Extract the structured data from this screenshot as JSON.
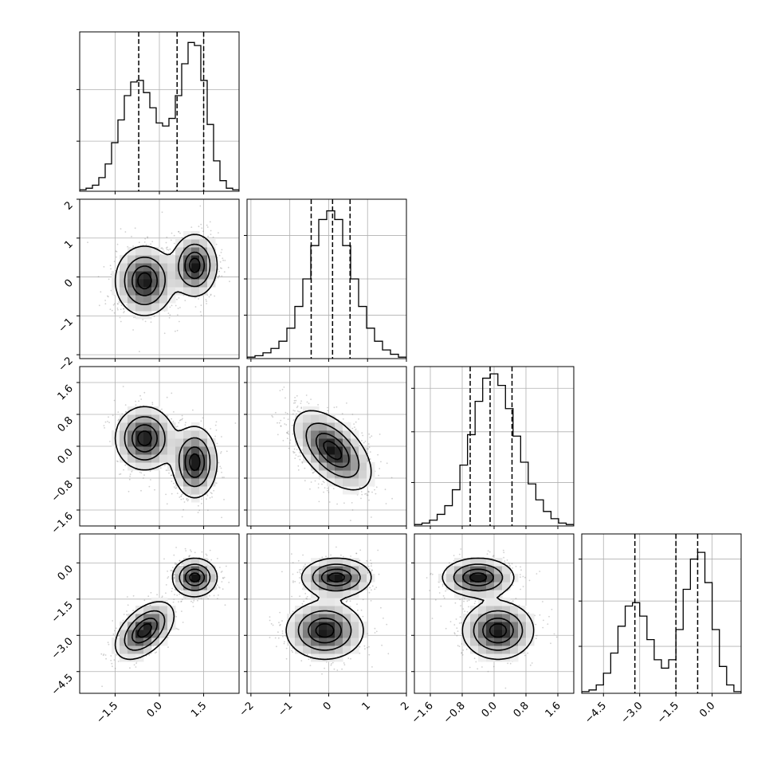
{
  "chart_data": {
    "type": "corner",
    "title": "",
    "grid": true,
    "colors": {
      "line": "#000000",
      "grid": "#b0b0b0",
      "scatter": "#777777"
    },
    "params": [
      {
        "index": 0,
        "range": [
          -2.7,
          2.7
        ],
        "ticks": [
          -1.5,
          0.0,
          1.5
        ],
        "tick_labels": [
          "−1.5",
          "0.0",
          "1.5"
        ],
        "quantiles": [
          -0.7,
          0.6,
          1.5
        ],
        "mixture": [
          {
            "w": 0.5,
            "mu": -0.5,
            "sd": 0.5
          },
          {
            "w": 0.5,
            "mu": 1.2,
            "sd": 0.4
          }
        ],
        "hist_bins": [
          0.01,
          0.02,
          0.04,
          0.09,
          0.18,
          0.32,
          0.47,
          0.63,
          0.72,
          0.73,
          0.65,
          0.55,
          0.45,
          0.43,
          0.48,
          0.63,
          0.84,
          0.98,
          0.96,
          0.73,
          0.44,
          0.2,
          0.07,
          0.02,
          0.01
        ],
        "hist_ymax": 1.05,
        "hist_yticks": [
          0.33,
          0.67
        ]
      },
      {
        "index": 1,
        "range": [
          -2.1,
          2.0
        ],
        "ticks": [
          -2,
          -1,
          0,
          1,
          2
        ],
        "tick_labels": [
          "−2",
          "−1",
          "0",
          "1",
          "2"
        ],
        "quantiles": [
          -0.45,
          0.1,
          0.55
        ],
        "mixture": [
          {
            "w": 1.0,
            "mu": 0.1,
            "sd": 0.5
          }
        ],
        "hist_bins": [
          0.01,
          0.02,
          0.04,
          0.07,
          0.12,
          0.21,
          0.36,
          0.55,
          0.78,
          0.96,
          1.02,
          0.96,
          0.78,
          0.55,
          0.36,
          0.21,
          0.12,
          0.06,
          0.03,
          0.01
        ],
        "hist_ymax": 1.1,
        "hist_yticks": [
          0.3,
          0.55,
          0.85
        ]
      },
      {
        "index": 2,
        "range": [
          -2.0,
          2.0
        ],
        "ticks": [
          -1.6,
          -0.8,
          0.0,
          0.8,
          1.6
        ],
        "tick_labels": [
          "−1.6",
          "−0.8",
          "0.0",
          "0.8",
          "1.6"
        ],
        "quantiles": [
          -0.6,
          -0.1,
          0.45
        ],
        "mixture": [
          {
            "w": 1.0,
            "mu": -0.1,
            "sd": 0.5
          }
        ],
        "hist_bins": [
          0.01,
          0.02,
          0.04,
          0.08,
          0.14,
          0.25,
          0.42,
          0.63,
          0.86,
          1.02,
          1.05,
          0.97,
          0.81,
          0.62,
          0.44,
          0.29,
          0.18,
          0.1,
          0.05,
          0.02,
          0.01
        ],
        "hist_ymax": 1.1,
        "hist_yticks": [
          0.3,
          0.65,
          0.95
        ]
      },
      {
        "index": 3,
        "range": [
          -5.4,
          1.2
        ],
        "ticks": [
          -4.5,
          -3.0,
          -1.5,
          0.0
        ],
        "tick_labels": [
          "−4.5",
          "−3.0",
          "−1.5",
          "0.0"
        ],
        "quantiles": [
          -3.2,
          -1.5,
          -0.6
        ],
        "mixture": [
          {
            "w": 0.5,
            "mu": -2.8,
            "sd": 0.6
          },
          {
            "w": 0.5,
            "mu": -0.6,
            "sd": 0.4
          }
        ],
        "hist_bins": [
          0.01,
          0.02,
          0.05,
          0.12,
          0.24,
          0.4,
          0.52,
          0.54,
          0.46,
          0.32,
          0.2,
          0.15,
          0.2,
          0.38,
          0.62,
          0.8,
          0.84,
          0.66,
          0.38,
          0.16,
          0.05,
          0.01
        ],
        "hist_ymax": 0.95,
        "hist_yticks": [
          0.28,
          0.55,
          0.8
        ]
      }
    ],
    "pairs": [
      {
        "row": 1,
        "col": 0,
        "modes": [
          {
            "w": 0.5,
            "mx": -0.5,
            "my": -0.1,
            "sx": 0.5,
            "sy": 0.45,
            "rho": 0.0
          },
          {
            "w": 0.5,
            "mx": 1.2,
            "my": 0.3,
            "sx": 0.38,
            "sy": 0.4,
            "rho": 0.0
          }
        ]
      },
      {
        "row": 2,
        "col": 0,
        "modes": [
          {
            "w": 0.5,
            "mx": -0.5,
            "my": 0.2,
            "sx": 0.5,
            "sy": 0.4,
            "rho": 0.0
          },
          {
            "w": 0.5,
            "mx": 1.2,
            "my": -0.4,
            "sx": 0.38,
            "sy": 0.45,
            "rho": 0.0
          }
        ]
      },
      {
        "row": 2,
        "col": 1,
        "modes": [
          {
            "w": 1.0,
            "mx": 0.1,
            "my": -0.1,
            "sx": 0.5,
            "sy": 0.5,
            "rho": -0.55
          }
        ]
      },
      {
        "row": 3,
        "col": 0,
        "modes": [
          {
            "w": 0.5,
            "mx": -0.5,
            "my": -2.8,
            "sx": 0.5,
            "sy": 0.6,
            "rho": 0.5
          },
          {
            "w": 0.5,
            "mx": 1.2,
            "my": -0.6,
            "sx": 0.38,
            "sy": 0.4,
            "rho": 0.0
          }
        ]
      },
      {
        "row": 3,
        "col": 1,
        "modes": [
          {
            "w": 0.5,
            "mx": -0.1,
            "my": -2.8,
            "sx": 0.5,
            "sy": 0.6,
            "rho": 0.0
          },
          {
            "w": 0.5,
            "mx": 0.2,
            "my": -0.6,
            "sx": 0.45,
            "sy": 0.4,
            "rho": 0.0
          }
        ]
      },
      {
        "row": 3,
        "col": 2,
        "modes": [
          {
            "w": 0.5,
            "mx": 0.1,
            "my": -2.8,
            "sx": 0.45,
            "sy": 0.6,
            "rho": 0.0
          },
          {
            "w": 0.5,
            "mx": -0.4,
            "my": -0.6,
            "sx": 0.45,
            "sy": 0.4,
            "rho": 0.0
          }
        ]
      }
    ]
  }
}
